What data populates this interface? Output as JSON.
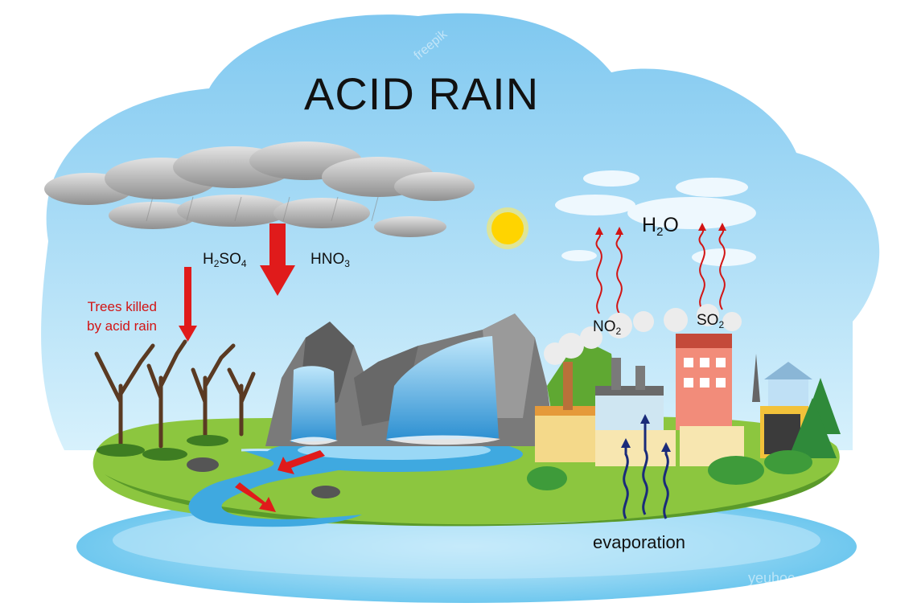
{
  "title": "ACID RAIN",
  "labels": {
    "h2so4": {
      "base": "H",
      "sub1": "2",
      "mid": "SO",
      "sub2": "4"
    },
    "hno3": {
      "base": "HNO",
      "sub1": "3"
    },
    "h2o": {
      "base": "H",
      "sub1": "2",
      "tail": "O"
    },
    "no2": {
      "base": "NO",
      "sub1": "2"
    },
    "so2": {
      "base": "SO",
      "sub1": "2"
    },
    "trees_line1": "Trees killed",
    "trees_line2": "by acid rain",
    "evaporation": "evaporation"
  },
  "watermarks": [
    "freepik",
    "yeuhoc"
  ],
  "colors": {
    "sky": "#a9dcf6",
    "sky_light": "#d8f1fc",
    "grass": "#8cc63f",
    "water": "#3fa9e0",
    "arrow_red": "#e01b1b",
    "cloud": "#c9c9c9",
    "sun": "#ffd400",
    "evap_arrow": "#1a2b7a"
  },
  "icons": [
    "cloud-icon",
    "sun-icon",
    "tree-icon",
    "factory-icon",
    "rock-icon",
    "waterfall-icon"
  ]
}
